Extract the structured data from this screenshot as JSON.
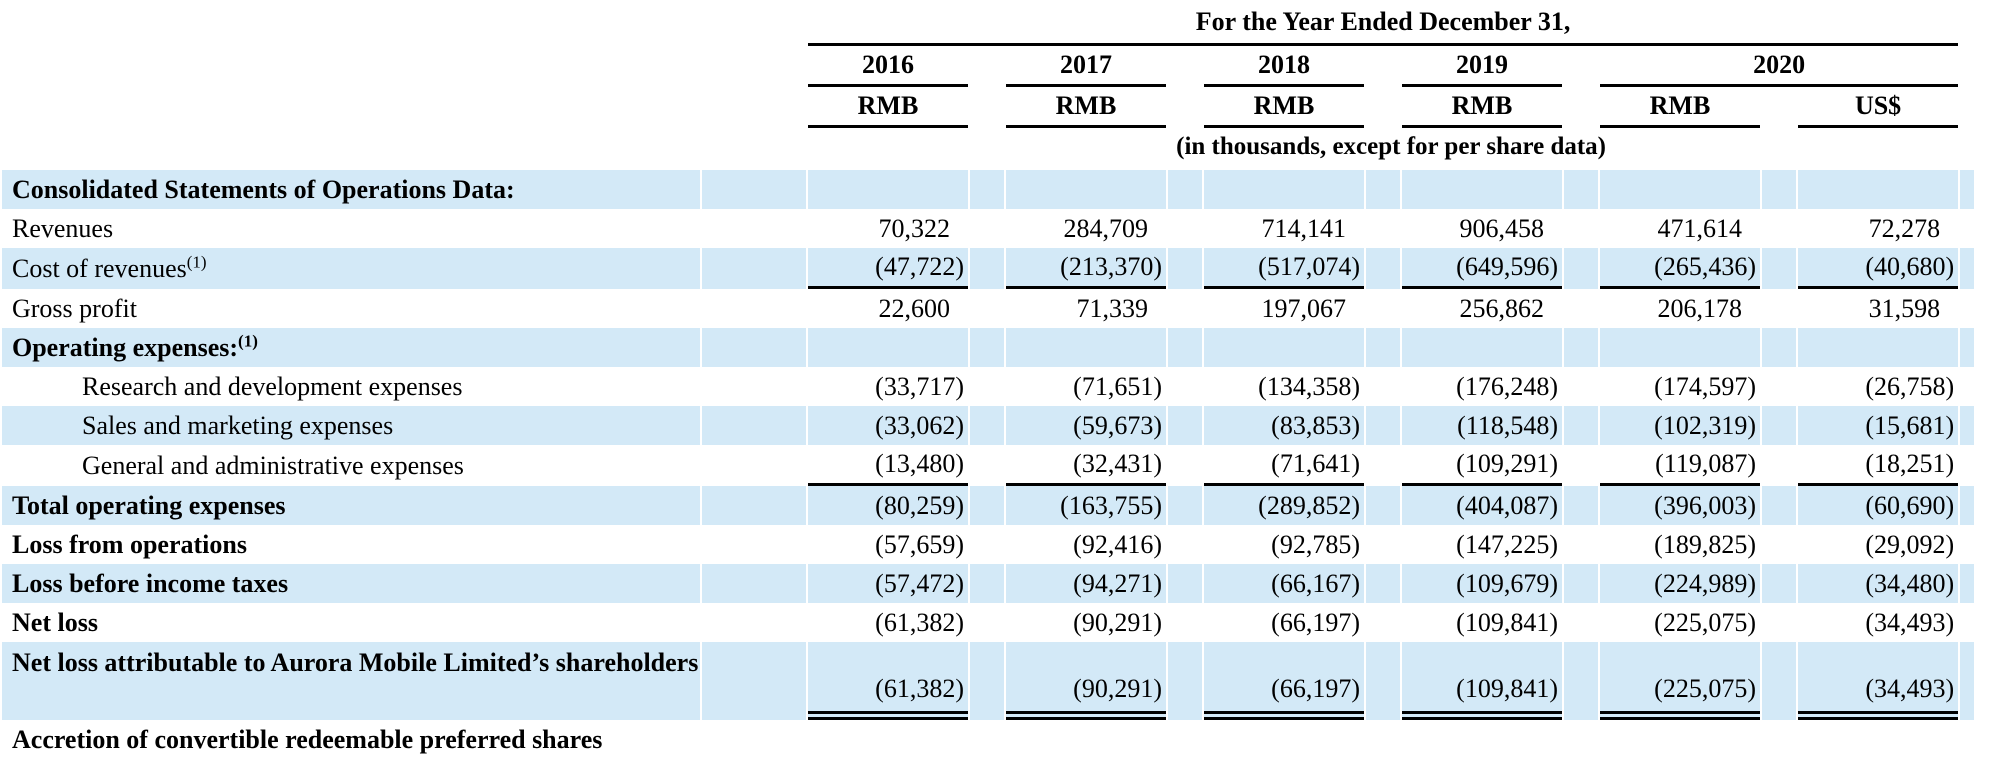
{
  "table": {
    "header": {
      "group_title": "For the Year Ended December 31,",
      "years": [
        "2016",
        "2017",
        "2018",
        "2019",
        "2020"
      ],
      "currencies": [
        "RMB",
        "RMB",
        "RMB",
        "RMB",
        "RMB",
        "US$"
      ],
      "units_note": "(in thousands, except for per share data)"
    },
    "rows": [
      {
        "label": "Consolidated Statements of Operations Data:",
        "style": "bold",
        "values": [
          "",
          "",
          "",
          "",
          "",
          ""
        ]
      },
      {
        "label": "Revenues",
        "values": [
          "70,322",
          "284,709",
          "714,141",
          "906,458",
          "471,614",
          "72,278"
        ]
      },
      {
        "label": "Cost of revenues",
        "sup": "(1)",
        "underline": "single",
        "values": [
          "(47,722)",
          "(213,370)",
          "(517,074)",
          "(649,596)",
          "(265,436)",
          "(40,680)"
        ]
      },
      {
        "label": "Gross profit",
        "values": [
          "22,600",
          "71,339",
          "197,067",
          "256,862",
          "206,178",
          "31,598"
        ]
      },
      {
        "label": "Operating expenses:",
        "sup": "(1)",
        "style": "bold",
        "values": [
          "",
          "",
          "",
          "",
          "",
          ""
        ]
      },
      {
        "label": "Research and development expenses",
        "indent": true,
        "values": [
          "(33,717)",
          "(71,651)",
          "(134,358)",
          "(176,248)",
          "(174,597)",
          "(26,758)"
        ]
      },
      {
        "label": "Sales and marketing expenses",
        "indent": true,
        "values": [
          "(33,062)",
          "(59,673)",
          "(83,853)",
          "(118,548)",
          "(102,319)",
          "(15,681)"
        ]
      },
      {
        "label": "General and administrative expenses",
        "indent": true,
        "underline": "single",
        "values": [
          "(13,480)",
          "(32,431)",
          "(71,641)",
          "(109,291)",
          "(119,087)",
          "(18,251)"
        ]
      },
      {
        "label": "Total operating expenses",
        "style": "bold",
        "values": [
          "(80,259)",
          "(163,755)",
          "(289,852)",
          "(404,087)",
          "(396,003)",
          "(60,690)"
        ]
      },
      {
        "label": "Loss from operations",
        "style": "bold",
        "values": [
          "(57,659)",
          "(92,416)",
          "(92,785)",
          "(147,225)",
          "(189,825)",
          "(29,092)"
        ]
      },
      {
        "label": "Loss before income taxes",
        "style": "bold",
        "values": [
          "(57,472)",
          "(94,271)",
          "(66,167)",
          "(109,679)",
          "(224,989)",
          "(34,480)"
        ]
      },
      {
        "label": "Net loss",
        "style": "bold",
        "values": [
          "(61,382)",
          "(90,291)",
          "(66,197)",
          "(109,841)",
          "(225,075)",
          "(34,493)"
        ]
      },
      {
        "label": "Net loss attributable to Aurora Mobile Limited’s shareholders",
        "style": "bold",
        "wrap": true,
        "underline": "double",
        "values": [
          "(61,382)",
          "(90,291)",
          "(66,197)",
          "(109,841)",
          "(225,075)",
          "(34,493)"
        ]
      },
      {
        "label": "Accretion of convertible redeemable preferred shares",
        "style": "bold",
        "clipped": true,
        "values": [
          "",
          "",
          "",
          "",
          "",
          ""
        ]
      }
    ],
    "colors": {
      "stripe": "#d3e9f7",
      "text": "#000000",
      "rule": "#000000"
    }
  }
}
